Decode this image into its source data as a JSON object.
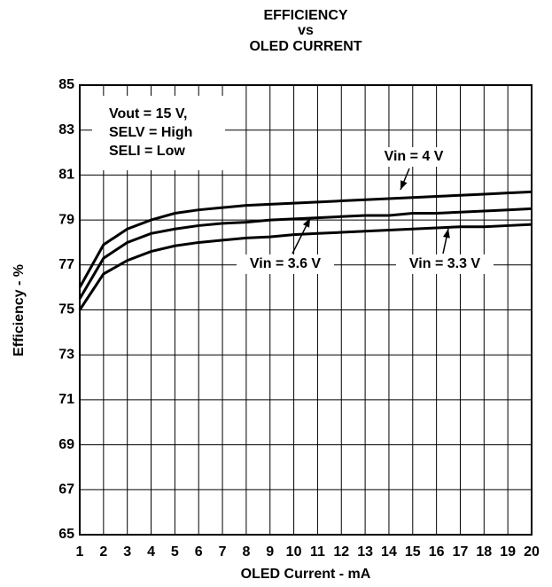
{
  "chart_data": {
    "type": "line",
    "title": [
      "EFFICIENCY",
      "vs",
      "OLED CURRENT"
    ],
    "x_label": "OLED Current - mA",
    "y_label": "Efficiency - %",
    "x": [
      1,
      2,
      3,
      4,
      5,
      6,
      7,
      8,
      9,
      10,
      11,
      12,
      13,
      14,
      15,
      16,
      17,
      18,
      19,
      20
    ],
    "series": [
      {
        "name": "Vin = 4 V",
        "color": "#000000",
        "values": [
          76.0,
          77.9,
          78.6,
          79.0,
          79.3,
          79.45,
          79.55,
          79.65,
          79.7,
          79.75,
          79.8,
          79.85,
          79.9,
          79.95,
          80.0,
          80.05,
          80.1,
          80.15,
          80.2,
          80.25
        ]
      },
      {
        "name": "Vin = 3.6 V",
        "color": "#000000",
        "values": [
          75.5,
          77.3,
          78.0,
          78.4,
          78.6,
          78.75,
          78.85,
          78.9,
          79.0,
          79.05,
          79.1,
          79.15,
          79.2,
          79.2,
          79.3,
          79.3,
          79.35,
          79.4,
          79.45,
          79.5
        ]
      },
      {
        "name": "Vin = 3.3 V",
        "color": "#000000",
        "values": [
          75.0,
          76.6,
          77.2,
          77.6,
          77.85,
          78.0,
          78.1,
          78.2,
          78.25,
          78.35,
          78.4,
          78.45,
          78.5,
          78.55,
          78.6,
          78.65,
          78.7,
          78.7,
          78.75,
          78.8
        ]
      }
    ],
    "annotations": [
      "Vout = 15 V,",
      "SELV = High",
      "SELI = Low"
    ],
    "xlim": [
      1,
      20
    ],
    "xticks": [
      1,
      2,
      3,
      4,
      5,
      6,
      7,
      8,
      9,
      10,
      11,
      12,
      13,
      14,
      15,
      16,
      17,
      18,
      19,
      20
    ],
    "ylim": [
      65,
      85
    ],
    "yticks": [
      65,
      67,
      69,
      71,
      73,
      75,
      77,
      79,
      81,
      83,
      85
    ],
    "grid": true
  }
}
